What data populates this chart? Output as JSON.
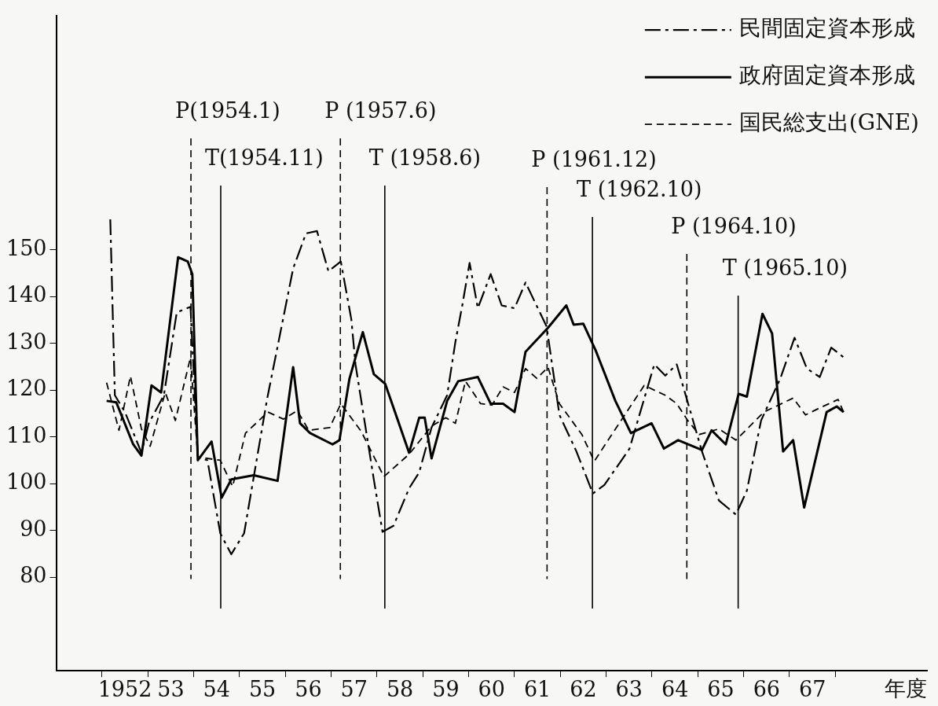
{
  "chart_data": {
    "type": "line",
    "xlabel": "年度",
    "legend": "top right",
    "marker": "none",
    "xlim": [
      1950.5,
      1969.5
    ],
    "xticks": [
      {
        "value": 1951.5,
        "label": null
      },
      {
        "value": 1952,
        "label": "1952"
      },
      {
        "value": 1952.5,
        "label": null
      },
      {
        "value": 1953,
        "label": "53"
      },
      {
        "value": 1953.5,
        "label": null
      },
      {
        "value": 1954,
        "label": "54"
      },
      {
        "value": 1954.5,
        "label": null
      },
      {
        "value": 1955,
        "label": "55"
      },
      {
        "value": 1955.5,
        "label": null
      },
      {
        "value": 1956,
        "label": "56"
      },
      {
        "value": 1956.5,
        "label": null
      },
      {
        "value": 1957,
        "label": "57"
      },
      {
        "value": 1957.5,
        "label": null
      },
      {
        "value": 1958,
        "label": "58"
      },
      {
        "value": 1958.5,
        "label": null
      },
      {
        "value": 1959,
        "label": "59"
      },
      {
        "value": 1959.5,
        "label": null
      },
      {
        "value": 1960,
        "label": "60"
      },
      {
        "value": 1960.5,
        "label": null
      },
      {
        "value": 1961,
        "label": "61"
      },
      {
        "value": 1961.5,
        "label": null
      },
      {
        "value": 1962,
        "label": "62"
      },
      {
        "value": 1962.5,
        "label": null
      },
      {
        "value": 1963,
        "label": "63"
      },
      {
        "value": 1963.5,
        "label": null
      },
      {
        "value": 1964,
        "label": "64"
      },
      {
        "value": 1964.5,
        "label": null
      },
      {
        "value": 1965,
        "label": "65"
      },
      {
        "value": 1965.5,
        "label": null
      },
      {
        "value": 1966,
        "label": "66"
      },
      {
        "value": 1966.5,
        "label": null
      },
      {
        "value": 1967,
        "label": "67"
      },
      {
        "value": 1967.5,
        "label": null
      }
    ],
    "ylim": [
      60,
      200
    ],
    "yticks": [
      80,
      90,
      100,
      110,
      120,
      130,
      140,
      150
    ],
    "series": [
      {
        "name": "民間固定資本形成",
        "color": "#000000",
        "line_style": "dashdot",
        "x": [
          1951.68,
          1951.78,
          1952.0,
          1952.36,
          1952.52,
          1952.85,
          1953.13,
          1953.43,
          1953.59,
          1953.8,
          1954.08,
          1954.32,
          1954.6,
          1955.1,
          1955.67,
          1955.95,
          1956.19,
          1956.44,
          1956.71,
          1956.94,
          1957.03,
          1957.43,
          1957.62,
          1957.86,
          1958.2,
          1958.42,
          1958.69,
          1959.03,
          1959.21,
          1959.36,
          1959.52,
          1959.7,
          1959.98,
          1960.22,
          1960.5,
          1960.74,
          1961.2,
          1961.48,
          1961.85,
          1962.21,
          1962.46,
          1963.01,
          1963.55,
          1963.79,
          1964.04,
          1964.59,
          1964.96,
          1965.33,
          1965.57,
          1965.88,
          1966.3,
          1966.61,
          1966.88,
          1967.16,
          1967.41,
          1967.68
        ],
        "values": [
          156.5,
          118.9,
          115.3,
          106.6,
          112.9,
          118.9,
          136.6,
          137.8,
          105.7,
          105,
          89.4,
          84.9,
          89.4,
          118,
          146,
          153.5,
          154,
          145.4,
          147.5,
          135.1,
          125.5,
          100.9,
          89.7,
          91,
          99,
          102.4,
          112,
          118.9,
          130.3,
          138.1,
          147.2,
          137.5,
          144.8,
          138.1,
          137.5,
          143,
          133.6,
          114.7,
          106.9,
          97.9,
          99.7,
          107.5,
          125.5,
          123.1,
          125.5,
          106.9,
          96.4,
          93.4,
          98.5,
          113.5,
          122.5,
          131.2,
          124.6,
          122.8,
          129.1,
          127
        ]
      },
      {
        "name": "政府固定資本形成",
        "color": "#000000",
        "line_style": "solid",
        "x": [
          1951.6,
          1951.81,
          1952.18,
          1952.36,
          1952.58,
          1952.79,
          1953.16,
          1953.37,
          1953.47,
          1953.59,
          1953.89,
          1954.11,
          1954.32,
          1954.81,
          1955.33,
          1955.67,
          1955.82,
          1956.04,
          1956.53,
          1956.68,
          1956.9,
          1957.19,
          1957.43,
          1957.68,
          1958.2,
          1958.42,
          1958.54,
          1958.69,
          1959.03,
          1959.27,
          1959.7,
          1959.98,
          1960.25,
          1960.5,
          1960.74,
          1961.23,
          1961.63,
          1961.79,
          1962.0,
          1962.27,
          1962.7,
          1963.04,
          1963.49,
          1963.76,
          1964.07,
          1964.59,
          1964.8,
          1965.11,
          1965.39,
          1965.57,
          1965.91,
          1966.12,
          1966.36,
          1966.58,
          1966.82,
          1967.31,
          1967.53,
          1967.68
        ],
        "values": [
          117.7,
          117.4,
          108.4,
          106,
          121,
          119.5,
          148.4,
          147.5,
          144.8,
          105,
          109,
          97,
          100.9,
          101.8,
          100.6,
          124.9,
          112.9,
          110.8,
          108.4,
          109.3,
          122.5,
          132.4,
          123.4,
          121.3,
          106.6,
          114.1,
          114.1,
          105.4,
          117.7,
          121.9,
          122.8,
          117.1,
          117.1,
          115.3,
          128.2,
          133.3,
          138.1,
          134,
          134.2,
          128.5,
          117.7,
          110.8,
          112.9,
          107.5,
          109.3,
          107.2,
          111.4,
          108.4,
          119.2,
          118.6,
          136.3,
          132.1,
          106.9,
          109.3,
          94.9,
          115.3,
          116.5,
          115.3
        ]
      },
      {
        "name": "国民総支出(GNE)",
        "color": "#000000",
        "line_style": "dashed",
        "x": [
          1951.6,
          1951.87,
          1952.12,
          1952.36,
          1952.55,
          1952.88,
          1953.1,
          1953.43,
          1953.59,
          1954.08,
          1954.35,
          1954.63,
          1955.12,
          1955.46,
          1955.76,
          1956.01,
          1956.47,
          1956.71,
          1957.16,
          1957.65,
          1958.2,
          1958.69,
          1959.0,
          1959.21,
          1959.43,
          1959.76,
          1960.01,
          1960.25,
          1960.5,
          1960.74,
          1960.99,
          1961.23,
          1961.48,
          1961.97,
          1962.24,
          1963.33,
          1963.79,
          1964.04,
          1964.28,
          1964.53,
          1964.96,
          1965.33,
          1965.94,
          1966.58,
          1966.85,
          1967.16,
          1967.56,
          1967.68
        ],
        "values": [
          121.6,
          111.4,
          123,
          111.7,
          108,
          119.5,
          113.5,
          127,
          105.7,
          105,
          99.4,
          110.8,
          115.3,
          113.8,
          115.6,
          111.4,
          112,
          117.1,
          111.1,
          101.5,
          106.3,
          112.3,
          114.1,
          112.9,
          121.9,
          117.1,
          116.8,
          120.7,
          119.5,
          124.6,
          122.5,
          124.9,
          117.1,
          110.5,
          104.8,
          121,
          118.9,
          117.1,
          113.5,
          110.5,
          111.7,
          109.3,
          115.3,
          118.3,
          114.7,
          116.2,
          118,
          115.3
        ]
      }
    ],
    "ref_lines": [
      {
        "axis": "x",
        "value": 1953.44,
        "label": "P(1954.1)",
        "line_style": "dashed"
      },
      {
        "axis": "x",
        "value": 1954.09,
        "label": "T(1954.11)",
        "line_style": "solid"
      },
      {
        "axis": "x",
        "value": 1956.7,
        "label": "P (1957.6)",
        "line_style": "dashed"
      },
      {
        "axis": "x",
        "value": 1957.67,
        "label": "T (1958.6)",
        "line_style": "solid"
      },
      {
        "axis": "x",
        "value": 1961.21,
        "label": "P (1961.12)",
        "line_style": "dashed"
      },
      {
        "axis": "x",
        "value": 1962.2,
        "label": "T (1962.10)",
        "line_style": "solid"
      },
      {
        "axis": "x",
        "value": 1964.26,
        "label": "P (1964.10)",
        "line_style": "dashed"
      },
      {
        "axis": "x",
        "value": 1965.38,
        "label": "T (1965.10)",
        "line_style": "solid"
      }
    ]
  }
}
